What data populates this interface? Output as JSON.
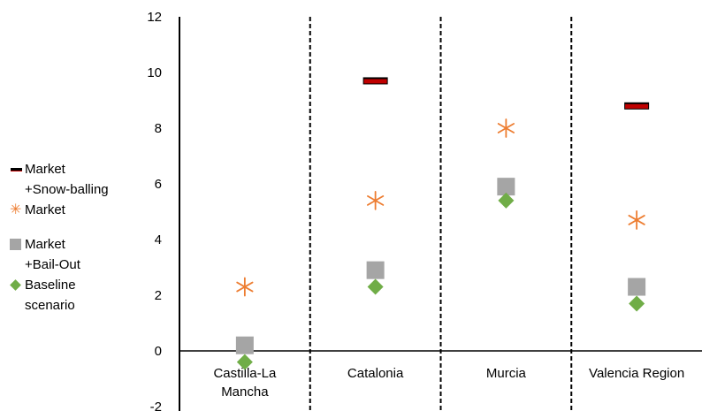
{
  "chart_data": {
    "type": "scatter",
    "categories": [
      "Castilla-La\nMancha",
      "Catalonia",
      "Murcia",
      "Valencia Region"
    ],
    "ylim": [
      -2,
      12
    ],
    "yticks": [
      -2,
      0,
      2,
      4,
      6,
      8,
      10,
      12
    ],
    "grid": false,
    "legend_position": "left",
    "series": [
      {
        "name": "Market\n+Snow-balling",
        "marker": "dash",
        "color": "#c00000",
        "values": [
          null,
          9.7,
          null,
          8.8
        ]
      },
      {
        "name": "Market",
        "marker": "star",
        "color": "#ed7d31",
        "values": [
          2.3,
          5.4,
          8.0,
          4.7
        ]
      },
      {
        "name": "Market\n+Bail-Out",
        "marker": "square",
        "color": "#a5a5a5",
        "values": [
          0.2,
          2.9,
          5.9,
          2.3
        ]
      },
      {
        "name": "Baseline\nscenario",
        "marker": "diamond",
        "color": "#70ad47",
        "values": [
          -0.4,
          2.3,
          5.4,
          1.7
        ]
      }
    ]
  }
}
